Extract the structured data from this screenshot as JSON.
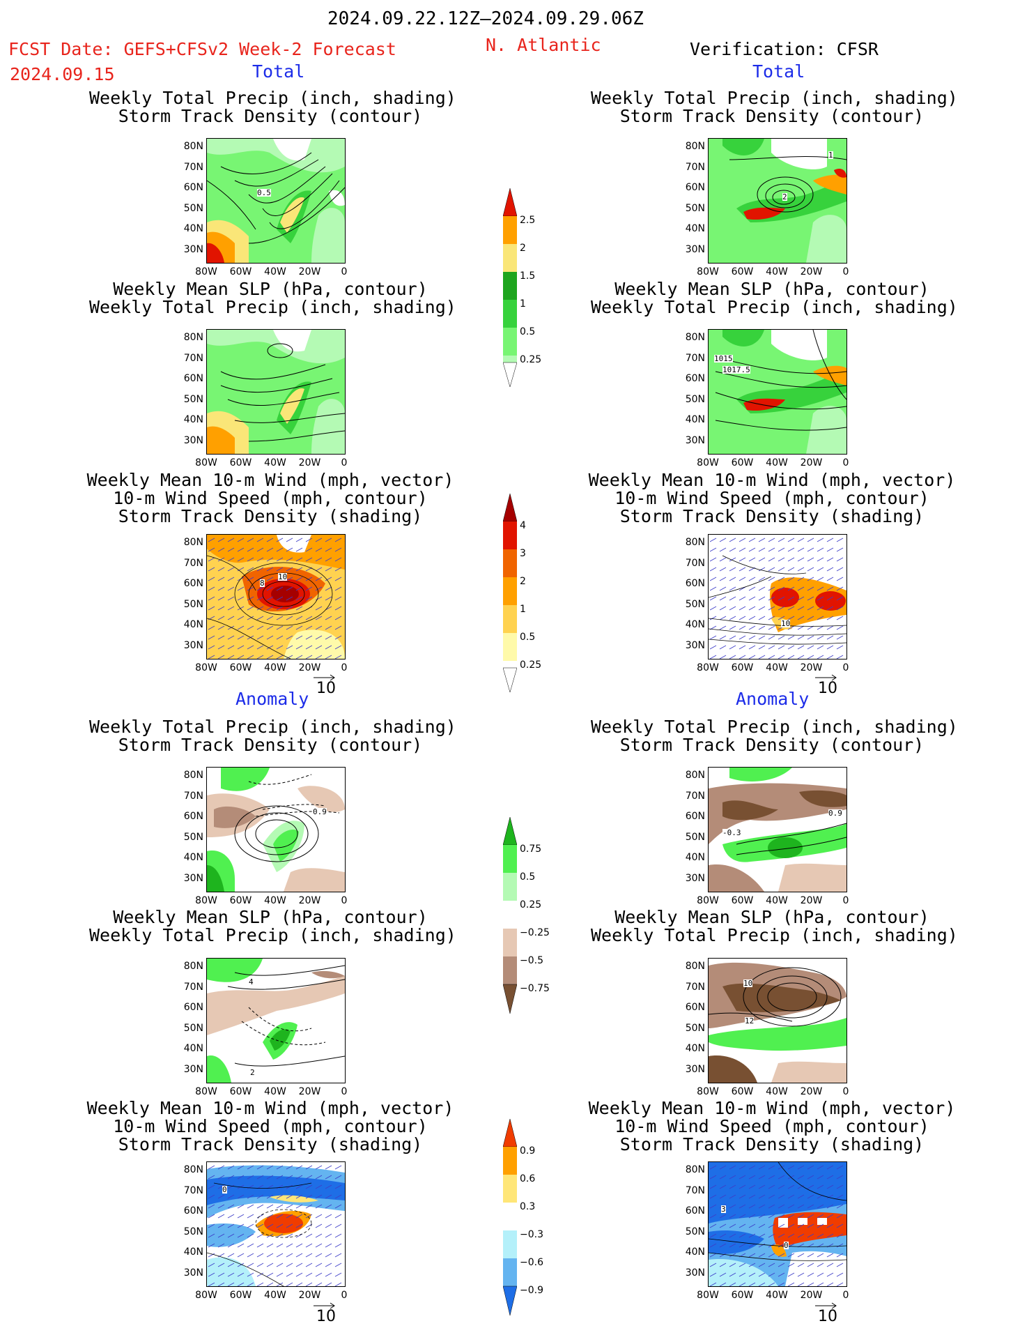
{
  "header": {
    "period": "2024.09.22.12Z–2024.09.29.06Z",
    "fcst_line": "FCST Date: GEFS+CFSv2 Week-2 Forecast",
    "fcst_date": "2024.09.15",
    "region": "N. Atlantic",
    "verification": "Verification: CFSR"
  },
  "sections": {
    "total": "Total",
    "anomaly": "Anomaly"
  },
  "titles": {
    "precip_storm": "Weekly Total Precip (inch, shading)\nStorm Track Density (contour)",
    "slp_precip": "Weekly Mean SLP (hPa, contour)\nWeekly Total Precip (inch, shading)",
    "wind_storm": "Weekly Mean 10-m Wind (mph, vector)\n10-m Wind Speed (mph, contour)\nStorm Track Density (shading)"
  },
  "axes": {
    "lat": [
      "80N",
      "70N",
      "60N",
      "50N",
      "40N",
      "30N"
    ],
    "lon": [
      "80W",
      "60W",
      "40W",
      "20W",
      "0"
    ]
  },
  "vector_ref": "10",
  "colorbars": {
    "precip_total": [
      "2.5",
      "2",
      "1.5",
      "1",
      "0.5",
      "0.25"
    ],
    "storm_total": [
      "4",
      "3",
      "2",
      "1",
      "0.5",
      "0.25"
    ],
    "precip_anom": [
      "0.75",
      "0.5",
      "0.25",
      "−0.25",
      "−0.5",
      "−0.75"
    ],
    "storm_anom": [
      "0.9",
      "0.6",
      "0.3",
      "−0.3",
      "−0.6",
      "−0.9"
    ]
  },
  "map_labels": {
    "fc_precip_total": "0.5",
    "ver_precip_total_a": "1",
    "ver_precip_total_b": "2",
    "ver_slp_a": "1015",
    "ver_slp_b": "1017.5",
    "fc_wind_a": "10",
    "fc_wind_b": "8",
    "ver_wind_a": "10",
    "fc_anom_precip": "0.9",
    "ver_anom_precip_a": "0.9",
    "ver_anom_precip_b": "-0.3",
    "fc_anom_slp_a": "4",
    "fc_anom_slp_b": "2",
    "ver_anom_slp_a": "10",
    "ver_anom_slp_b": "12",
    "fc_anom_wind": "0",
    "ver_anom_wind_a": "3",
    "ver_anom_wind_b": "0"
  },
  "colors": {
    "precip": [
      "#b4fab4",
      "#78f573",
      "#37d23c",
      "#1ea51e",
      "#fae678",
      "#ffa000",
      "#e11400"
    ],
    "storm": [
      "#fffaaa",
      "#ffd250",
      "#ffa000",
      "#f06400",
      "#e11400",
      "#a50000"
    ],
    "anom_green": [
      "#b4fab4",
      "#50f050",
      "#1eb41e"
    ],
    "anom_brown": [
      "#e6c8b4",
      "#b48c78",
      "#785032"
    ],
    "anom_storm_pos": [
      "#ffe678",
      "#ffa000",
      "#f03c00"
    ],
    "anom_storm_neg": [
      "#b4f0fa",
      "#64b4f0",
      "#1e6ee6"
    ]
  }
}
